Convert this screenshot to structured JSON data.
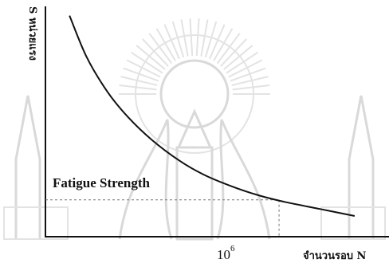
{
  "chart_data": {
    "type": "line",
    "title": "",
    "xlabel": "จำนวนรอบ N",
    "ylabel": "S หน่วยแรง",
    "x_ticks": [
      {
        "base": "10",
        "exponent": "6"
      }
    ],
    "annotations": [
      {
        "text": "Fatigue Strength"
      }
    ],
    "grid": false,
    "legend": "none",
    "series": [
      {
        "points": [
          [
            0.07,
            0.96
          ],
          [
            0.12,
            0.78
          ],
          [
            0.18,
            0.63
          ],
          [
            0.24,
            0.52
          ],
          [
            0.31,
            0.42
          ],
          [
            0.39,
            0.33
          ],
          [
            0.46,
            0.27
          ],
          [
            0.54,
            0.22
          ],
          [
            0.62,
            0.18
          ],
          [
            0.7,
            0.15
          ],
          [
            0.8,
            0.12
          ],
          [
            0.9,
            0.09
          ]
        ]
      }
    ],
    "guides": {
      "x_at_tick": 0.68,
      "y_level": 0.16
    }
  }
}
